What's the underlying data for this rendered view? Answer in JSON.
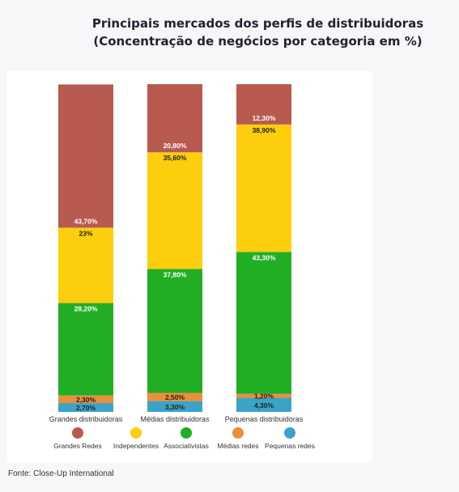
{
  "title": {
    "line1": "Principais mercados dos perfis de distribuidoras",
    "line2": "(Concentração de negócios por categoria em %)"
  },
  "source": "Fonte: Close-Up International",
  "chart_data": {
    "type": "bar",
    "stacked": true,
    "orientation": "vertical",
    "categories": [
      "Grandes distribuidoras",
      "Médias distribuidoras",
      "Pequenas distribuidoras"
    ],
    "series": [
      {
        "name": "Pequenas redes",
        "color": "#3ba3c8",
        "values": [
          2.7,
          3.3,
          4.3
        ],
        "labels": [
          "2,70%",
          "3,30%",
          "4,30%"
        ]
      },
      {
        "name": "Médias redes",
        "color": "#ec8e3a",
        "values": [
          2.3,
          2.5,
          1.2
        ],
        "labels": [
          "2,30%",
          "2,50%",
          "1,20%"
        ]
      },
      {
        "name": "Associativistas",
        "color": "#21ae25",
        "values": [
          28.2,
          37.8,
          43.3
        ],
        "labels": [
          "28,20%",
          "37,80%",
          "43,30%"
        ]
      },
      {
        "name": "Independentes",
        "color": "#fcce0d",
        "values": [
          23,
          35.6,
          38.9
        ],
        "labels": [
          "23%",
          "35,60%",
          "38,90%"
        ]
      },
      {
        "name": "Grandes Redes",
        "color": "#b85a50",
        "values": [
          43.7,
          20.8,
          12.3
        ],
        "labels": [
          "43,70%",
          "20,80%",
          "12,30%"
        ]
      }
    ],
    "legend": [
      {
        "name": "Grandes Redes",
        "color": "#b85a50"
      },
      {
        "name": "Independentes",
        "color": "#fcce0d"
      },
      {
        "name": "Associativistas",
        "color": "#21ae25"
      },
      {
        "name": "Médias redes",
        "color": "#ec8e3a"
      },
      {
        "name": "Pequenas redes",
        "color": "#3ba3c8"
      }
    ],
    "legend_position": "bottom",
    "ylim": [
      0,
      100
    ],
    "grid": false
  }
}
